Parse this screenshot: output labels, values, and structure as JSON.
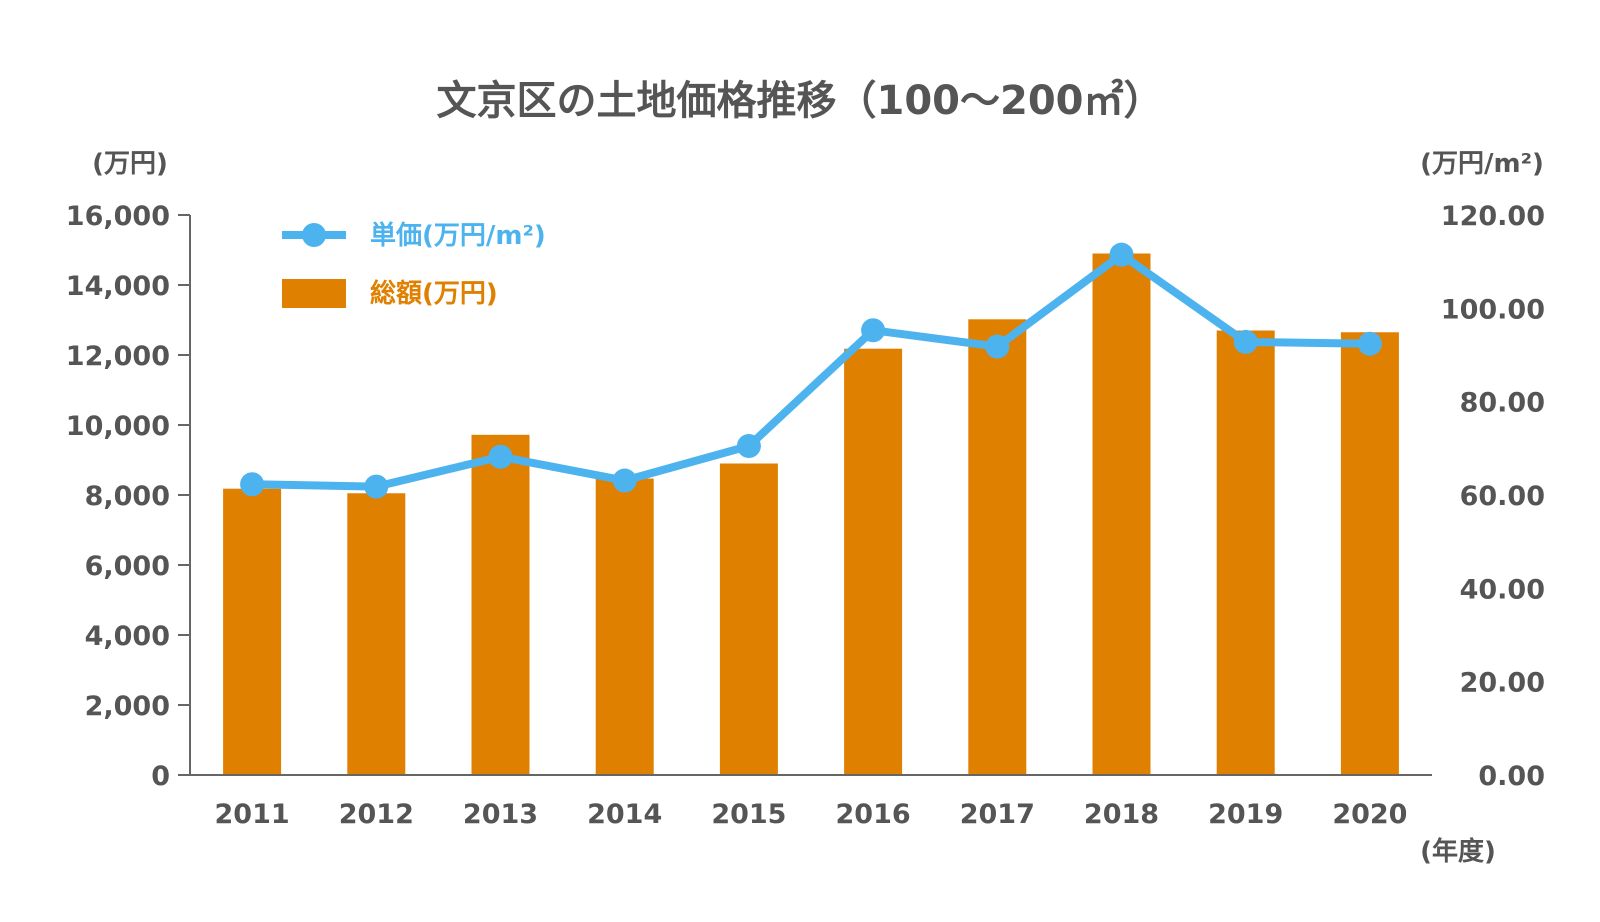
{
  "chart_data": {
    "type": "bar",
    "title": "文京区の土地価格推移（100～200㎡）",
    "categories": [
      "2011",
      "2012",
      "2013",
      "2014",
      "2015",
      "2016",
      "2017",
      "2018",
      "2019",
      "2020"
    ],
    "series": [
      {
        "name": "総額(万円)",
        "type": "bar",
        "axis": "left",
        "color": "#E08000",
        "values": [
          8180,
          8050,
          9720,
          8470,
          8900,
          12180,
          13020,
          14900,
          12700,
          12650
        ]
      },
      {
        "name": "単価(万円/m²)",
        "type": "line",
        "axis": "right",
        "color": "#4DB3EE",
        "values": [
          62.3,
          61.8,
          68.2,
          63.1,
          70.5,
          95.3,
          91.8,
          111.5,
          92.8,
          92.4
        ]
      }
    ],
    "ylabel_left": "(万円)",
    "ylabel_right": "(万円/m²)",
    "xlabel": "(年度)",
    "ylim_left": [
      0,
      16000
    ],
    "ylim_right": [
      0,
      120
    ],
    "yticks_left": [
      "0",
      "2,000",
      "4,000",
      "6,000",
      "8,000",
      "10,000",
      "12,000",
      "14,000",
      "16,000"
    ],
    "yticks_right": [
      "0.00",
      "20.00",
      "40.00",
      "60.00",
      "80.00",
      "100.00",
      "120.00"
    ],
    "grid": false,
    "legend_position": "top-left"
  }
}
